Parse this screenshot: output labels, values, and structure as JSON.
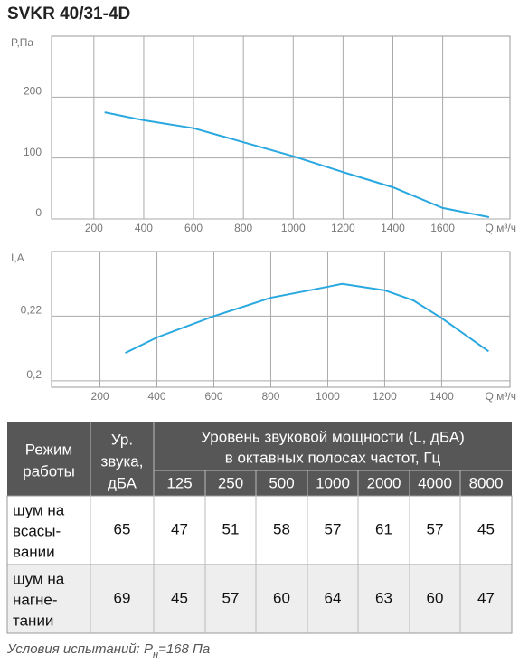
{
  "title": "SVKR 40/31-4D",
  "chart_data": [
    {
      "type": "line",
      "ylabel": "P,Па",
      "xlabel": "Q,м³/ч",
      "x": [
        243,
        400,
        600,
        800,
        1000,
        1200,
        1400,
        1600,
        1786
      ],
      "values": [
        175,
        162,
        149,
        126,
        103,
        77,
        52,
        18,
        3
      ],
      "color": "#29a8e0",
      "xlim": [
        30,
        1870
      ],
      "xticks": [
        200,
        400,
        600,
        800,
        1000,
        1200,
        1400,
        1600
      ],
      "ylim": [
        0,
        300
      ],
      "yticks": [
        0,
        100,
        200
      ],
      "grid": true
    },
    {
      "type": "line",
      "ylabel": "I,A",
      "xlabel": "Q,м³/ч",
      "x": [
        289,
        400,
        600,
        800,
        1000,
        1050,
        1200,
        1300,
        1400,
        1565
      ],
      "values": [
        0.2086,
        0.2134,
        0.22,
        0.2257,
        0.2291,
        0.23,
        0.228,
        0.2249,
        0.2194,
        0.2091
      ],
      "color": "#29a8e0",
      "xlim": [
        30,
        1640
      ],
      "xticks": [
        200,
        400,
        600,
        800,
        1000,
        1200,
        1400
      ],
      "ylim": [
        0.198,
        0.24
      ],
      "yticks": [
        {
          "value": 0.2,
          "label": "0,2"
        },
        {
          "value": 0.22,
          "label": "0,22"
        }
      ],
      "grid": true
    }
  ],
  "table": {
    "header": {
      "mode": [
        "Режим",
        "работы"
      ],
      "level": [
        "Ур.",
        "звука,",
        "дБА"
      ],
      "group": [
        "Уровень звуковой мощности (L, дБА)",
        "в октавных полосах частот, Гц"
      ],
      "bands": [
        "125",
        "250",
        "500",
        "1000",
        "2000",
        "4000",
        "8000"
      ]
    },
    "rows": [
      {
        "label": [
          "шум на",
          "всасы-",
          "вании"
        ],
        "values": [
          65,
          47,
          51,
          58,
          57,
          61,
          57,
          45
        ]
      },
      {
        "label": [
          "шум на",
          "нагне-",
          "тании"
        ],
        "values": [
          69,
          45,
          57,
          60,
          64,
          63,
          60,
          47
        ]
      }
    ]
  },
  "footer": {
    "text": "Условия испытаний: P",
    "subscript": "н",
    "rest": "=168 Па"
  }
}
